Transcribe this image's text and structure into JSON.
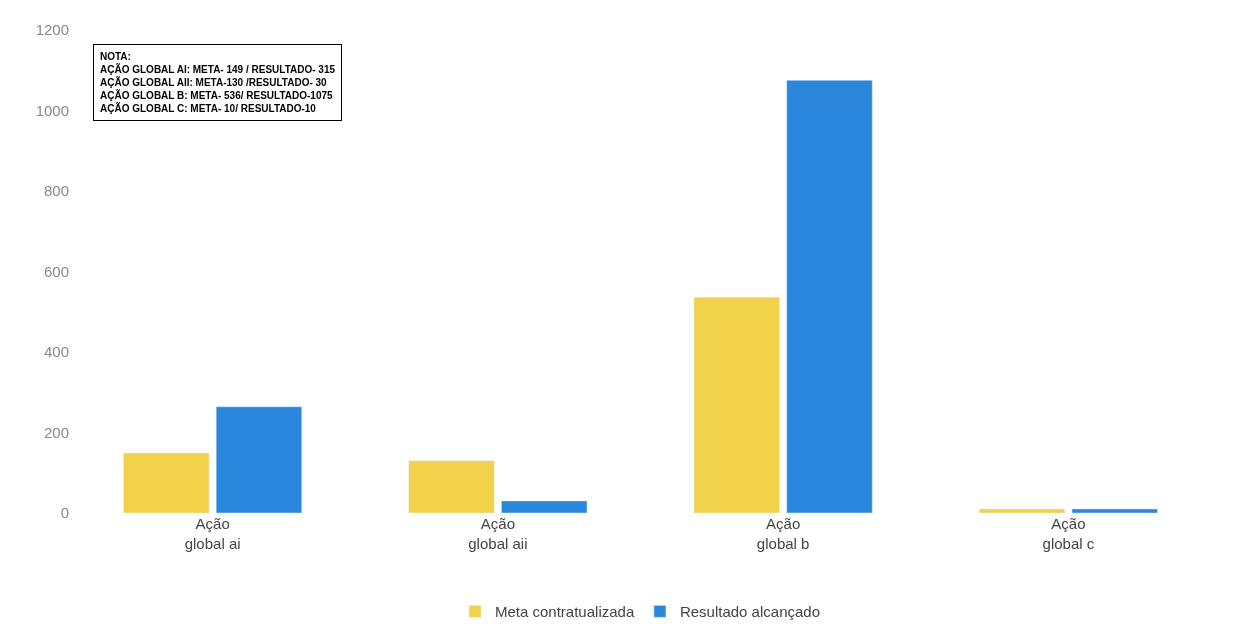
{
  "chart_data": {
    "type": "bar",
    "categories": [
      "Ação global ai",
      "Ação global aii",
      "Ação global b",
      "Ação global c"
    ],
    "series": [
      {
        "name": "Meta contratualizada",
        "color": "#f2d24b",
        "values": [
          149,
          130,
          536,
          10
        ]
      },
      {
        "name": "Resultado alcançado",
        "color": "#2b87dc",
        "values": [
          264,
          30,
          1075,
          10
        ]
      }
    ],
    "ylim": [
      0,
      1200
    ],
    "yticks": [
      0,
      200,
      400,
      600,
      800,
      1000,
      1200
    ],
    "legend": "bottom",
    "annotations": [
      "NOTA:\nAÇÃO GLOBAL AI: META- 149 / RESULTADO- 315\nAÇÃO GLOBAL AII: META-130 /RESULTADO- 30\nAÇÃO GLOBAL B: META- 536/ RESULTADO-1075\nAÇÃO GLOBAL C: META- 10/ RESULTADO-10"
    ]
  }
}
